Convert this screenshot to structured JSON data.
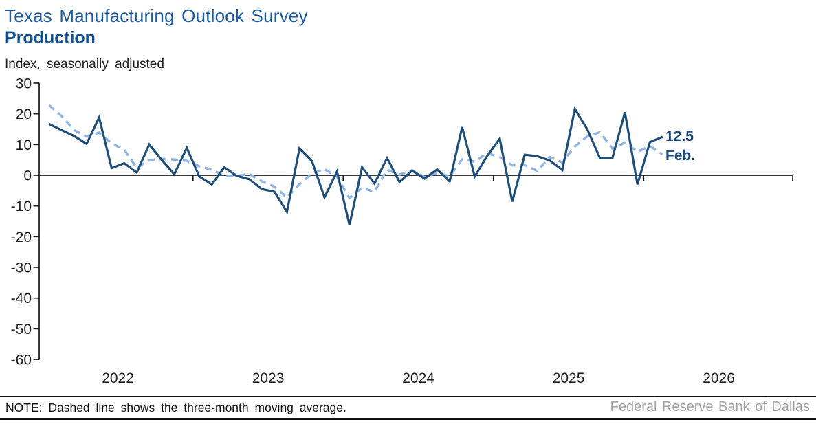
{
  "header": {
    "title": "Texas Manufacturing Outlook Survey",
    "subtitle": "Production",
    "axis_note": "Index, seasonally adjusted"
  },
  "annotation": {
    "value": "12.5",
    "month": "Feb."
  },
  "footer": {
    "note": "NOTE: Dashed line shows the three-month moving average.",
    "source": "Federal Reserve Bank of Dallas"
  },
  "colors": {
    "solid_line": "#1F4E79",
    "dashed_line": "#8DB4E2",
    "title_blue": "#1C5AA0",
    "subtitle_blue": "#11518F",
    "annotation_navy": "#17477E",
    "axis_black": "#1A1A1A",
    "source_gray": "#A3A3A3"
  },
  "chart_data": {
    "type": "line",
    "title": "Texas Manufacturing Outlook Survey — Production",
    "ylabel": "Index, seasonally adjusted",
    "ylim": [
      -60,
      30
    ],
    "yticks": [
      30,
      20,
      10,
      0,
      -10,
      -20,
      -30,
      -40,
      -50,
      -60
    ],
    "x": {
      "start": "2022-01",
      "end": "2026-02",
      "frequency": "monthly"
    },
    "x_year_labels": [
      "2022",
      "2023",
      "2024",
      "2025",
      "2026"
    ],
    "grid": false,
    "legend": "none (dashed explained in footnote)",
    "zero_line": true,
    "last_point": {
      "value": 12.5,
      "month_label": "Feb.",
      "value_label": "12.5"
    },
    "series": [
      {
        "name": "Production index, monthly",
        "style": "solid",
        "color": "#1F4E79",
        "values": [
          16.7,
          14.7,
          12.8,
          10.2,
          18.8,
          2.3,
          3.9,
          0.9,
          10.0,
          5.0,
          0.3,
          8.9,
          -0.4,
          -3.0,
          2.6,
          -0.2,
          -1.3,
          -4.5,
          -5.4,
          -11.9,
          8.7,
          4.6,
          -7.2,
          1.2,
          -16.2,
          2.6,
          -2.7,
          5.6,
          -2.2,
          1.5,
          -1.1,
          1.9,
          -2.0,
          15.7,
          -0.4,
          6.3,
          11.9,
          -8.6,
          6.7,
          6.2,
          4.8,
          1.7,
          21.6,
          14.9,
          5.6,
          5.6,
          20.5,
          -3.0,
          10.8,
          12.5
        ]
      },
      {
        "name": "Three-month moving average",
        "style": "dashed",
        "color": "#8DB4E2",
        "values": [
          22.8,
          19.3,
          14.7,
          12.6,
          13.9,
          10.4,
          8.3,
          2.4,
          4.9,
          5.3,
          5.1,
          4.7,
          2.9,
          1.8,
          -0.3,
          -0.2,
          0.4,
          -2.0,
          -3.7,
          -7.3,
          -2.9,
          0.5,
          2.0,
          -0.5,
          -7.4,
          -4.1,
          -5.4,
          1.8,
          0.2,
          1.6,
          -0.6,
          0.8,
          -0.4,
          5.2,
          4.4,
          7.2,
          5.9,
          3.2,
          3.3,
          1.4,
          5.9,
          4.2,
          9.4,
          12.7,
          14.0,
          8.7,
          10.6,
          7.7,
          9.4,
          6.8
        ]
      }
    ]
  }
}
